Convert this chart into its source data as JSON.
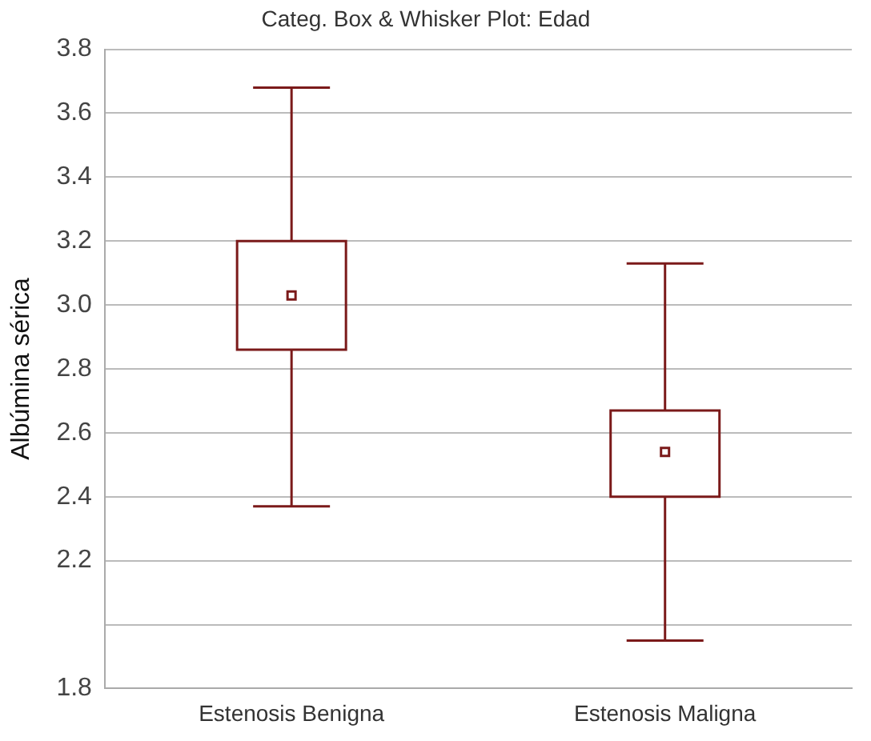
{
  "chart_data": {
    "type": "box",
    "title": "Categ. Box & Whisker Plot: Edad",
    "ylabel": "Albúmina sérica",
    "categories": [
      "Estenosis Benigna",
      "Estenosis Maligna"
    ],
    "color": "#7b1a1a",
    "boxes": [
      {
        "low": 2.37,
        "q1": 2.86,
        "median": 3.03,
        "q3": 3.2,
        "high": 3.68
      },
      {
        "low": 1.95,
        "q1": 2.4,
        "median": 2.54,
        "q3": 2.67,
        "high": 3.13
      }
    ],
    "ylim": [
      1.8,
      3.8
    ],
    "yticks": [
      1.8,
      {
        "value": 2.0,
        "label": null
      },
      2.2,
      2.4,
      2.6,
      2.8,
      {
        "value": 3.0,
        "label": "3.0"
      },
      3.2,
      3.4,
      3.6,
      3.8
    ],
    "grid": "y",
    "marker": "square"
  }
}
